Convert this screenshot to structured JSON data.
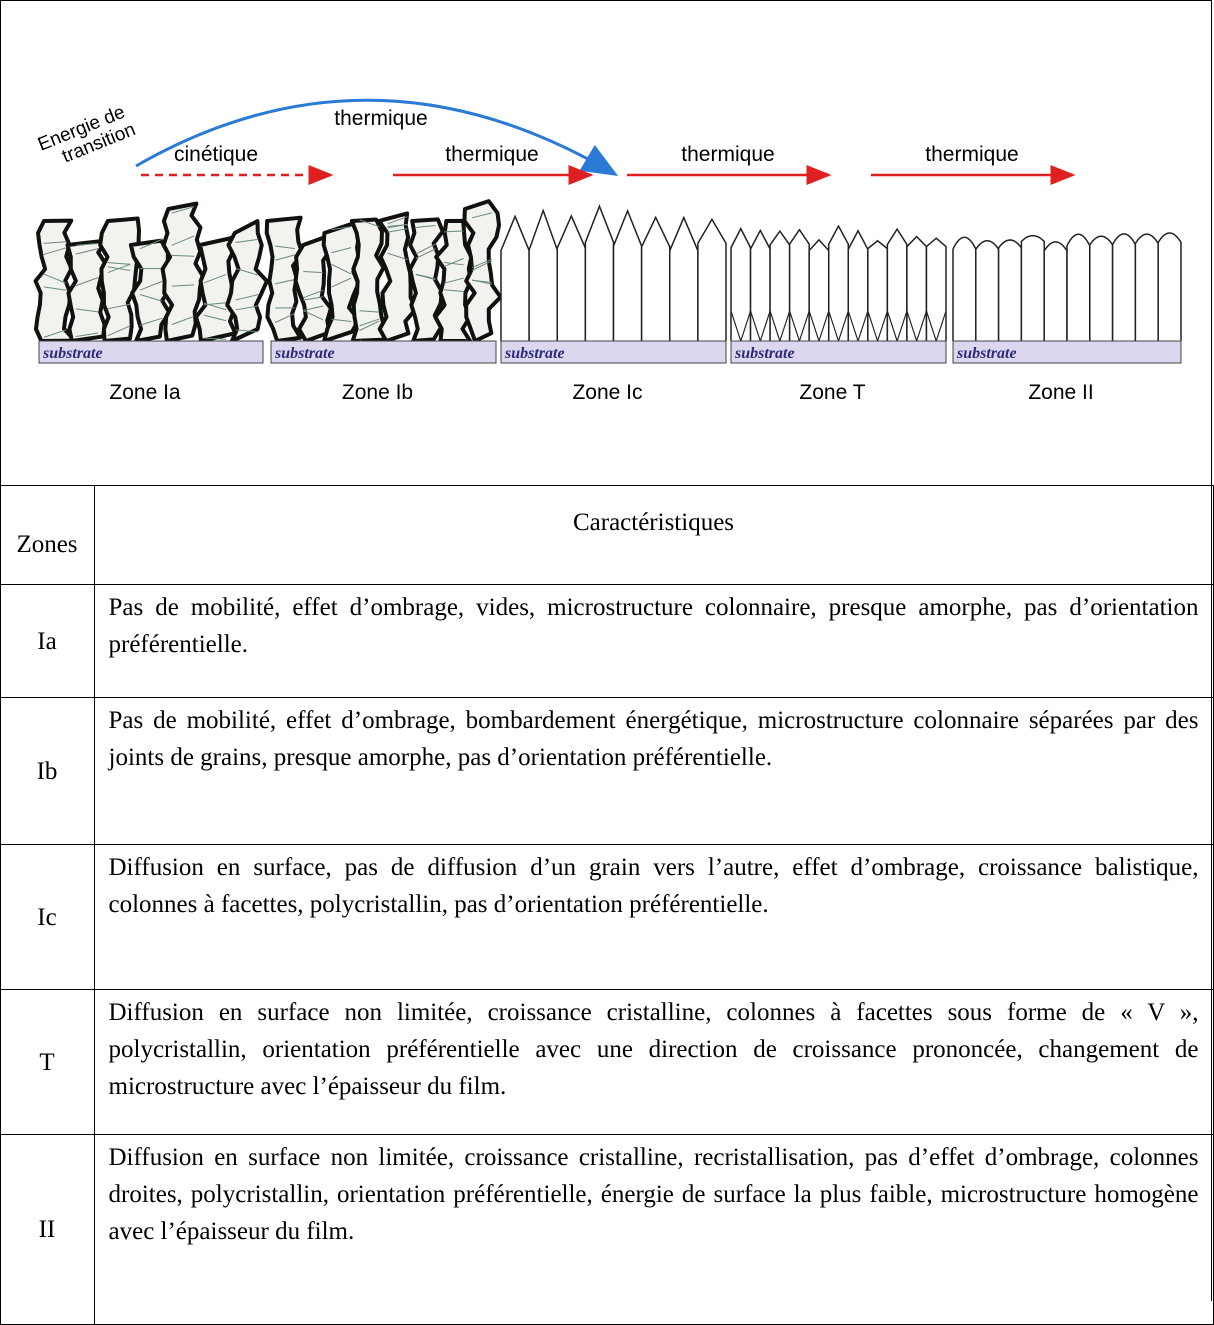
{
  "diagram": {
    "energy_label": [
      "Energie de",
      "transition"
    ],
    "arc_label": "thermique",
    "arrows": [
      {
        "label": "cinétique",
        "style": "dashed"
      },
      {
        "label": "thermique",
        "style": "solid"
      },
      {
        "label": "thermique",
        "style": "solid"
      },
      {
        "label": "thermique",
        "style": "solid"
      }
    ],
    "zones": [
      {
        "substrate": "substrate",
        "label": "Zone Ia"
      },
      {
        "substrate": "substrate",
        "label": "Zone Ib"
      },
      {
        "substrate": "substrate",
        "label": "Zone Ic"
      },
      {
        "substrate": "substrate",
        "label": "Zone T"
      },
      {
        "substrate": "substrate",
        "label": "Zone II"
      }
    ]
  },
  "table": {
    "header": [
      "Zones",
      "Caractéristiques"
    ],
    "rows": [
      [
        "Ia",
        "Pas de mobilité, effet d’ombrage, vides, microstructure colonnaire, presque amorphe, pas d’orientation préférentielle."
      ],
      [
        "Ib",
        "Pas de mobilité, effet d’ombrage, bombardement énergétique, microstructure colonnaire séparées par des joints de grains, presque amorphe, pas d’orientation préférentielle."
      ],
      [
        "Ic",
        "Diffusion en surface, pas de diffusion d’un grain vers l’autre, effet d’ombrage, croissance balistique, colonnes à facettes, polycristallin, pas d’orientation préférentielle."
      ],
      [
        "T",
        "Diffusion en surface non limitée, croissance cristalline, colonnes à facettes sous forme de « V », polycristallin, orientation préférentielle avec une direction de croissance prononcée, changement de microstructure avec l’épaisseur du film."
      ],
      [
        "II",
        "Diffusion en surface non limitée, croissance cristalline, recristallisation, pas d’effet d’ombrage, colonnes droites, polycristallin, orientation préférentielle, énergie de surface la plus faible, microstructure homogène avec l’épaisseur du film."
      ]
    ]
  }
}
